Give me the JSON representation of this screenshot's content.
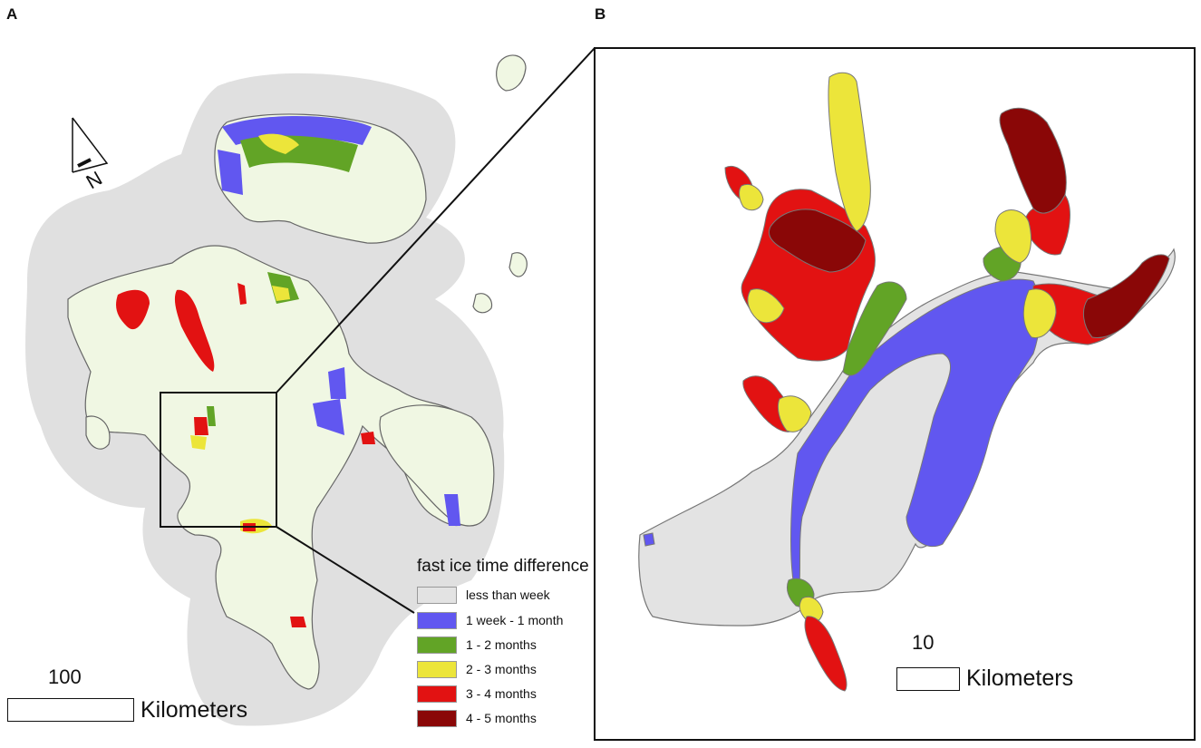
{
  "panels": {
    "a_label": "A",
    "b_label": "B"
  },
  "north_arrow": {
    "label": "N"
  },
  "legend": {
    "title": "fast ice time difference",
    "items": [
      {
        "label": "less than week",
        "color": "#e3e3e3"
      },
      {
        "label": "1 week - 1 month",
        "color": "#6157f0"
      },
      {
        "label": "1 - 2 months",
        "color": "#62a426"
      },
      {
        "label": "2 - 3 months",
        "color": "#ece53a"
      },
      {
        "label": "3 - 4 months",
        "color": "#e21212"
      },
      {
        "label": "4 - 5 months",
        "color": "#8a0707"
      }
    ]
  },
  "scale_a": {
    "value": "100",
    "unit": "Kilometers"
  },
  "scale_b": {
    "value": "10",
    "unit": "Kilometers"
  },
  "colors": {
    "land": "#f0f7e3",
    "buffer": "#e0e0e0",
    "coast": "#666666"
  }
}
